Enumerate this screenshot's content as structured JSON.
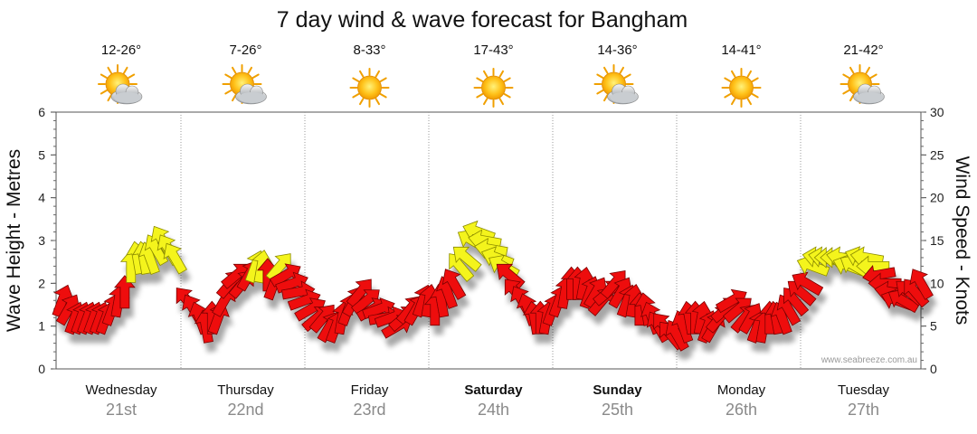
{
  "chart_data": {
    "type": "line",
    "title": "7 day wind & wave forecast for Bangham",
    "ylabel_left": "Wave Height - Metres",
    "ylabel_right": "Wind Speed - Knots",
    "ylim_left": [
      0,
      6
    ],
    "ylim_right": [
      0,
      30
    ],
    "yticks_left": [
      "0",
      "1",
      "2",
      "3",
      "4",
      "5",
      "6"
    ],
    "yticks_right": [
      "0",
      "5",
      "10",
      "15",
      "20",
      "25",
      "30"
    ],
    "watermark": "www.seabreeze.com.au",
    "grid": "dotted vertical at day boundaries",
    "days": [
      {
        "name": "Wednesday",
        "date": "21st",
        "temp": "12-26°",
        "icon": "partly-cloudy-icon",
        "bold": false
      },
      {
        "name": "Thursday",
        "date": "22nd",
        "temp": "7-26°",
        "icon": "partly-cloudy-icon",
        "bold": false
      },
      {
        "name": "Friday",
        "date": "23rd",
        "temp": "8-33°",
        "icon": "sunny-icon",
        "bold": false
      },
      {
        "name": "Saturday",
        "date": "24th",
        "temp": "17-43°",
        "icon": "sunny-icon",
        "bold": true
      },
      {
        "name": "Sunday",
        "date": "25th",
        "temp": "14-36°",
        "icon": "partly-cloudy-icon",
        "bold": true
      },
      {
        "name": "Monday",
        "date": "26th",
        "temp": "14-41°",
        "icon": "sunny-icon",
        "bold": false
      },
      {
        "name": "Tuesday",
        "date": "27th",
        "temp": "21-42°",
        "icon": "partly-cloudy-icon",
        "bold": false
      }
    ],
    "wind_series": {
      "name": "Wind Speed",
      "color_low": "#ee1111",
      "color_high": "#f4f41a",
      "x_day": [
        0.05,
        0.1,
        0.15,
        0.2,
        0.25,
        0.3,
        0.35,
        0.4,
        0.45,
        0.5,
        0.55,
        0.6,
        0.65,
        0.7,
        0.75,
        0.8,
        0.85,
        0.9,
        0.95,
        1.05,
        1.1,
        1.15,
        1.2,
        1.25,
        1.3,
        1.35,
        1.4,
        1.45,
        1.5,
        1.55,
        1.6,
        1.65,
        1.7,
        1.75,
        1.8,
        1.85,
        1.9,
        1.95,
        2.0,
        2.05,
        2.1,
        2.15,
        2.2,
        2.25,
        2.3,
        2.35,
        2.4,
        2.45,
        2.5,
        2.55,
        2.6,
        2.65,
        2.7,
        2.75,
        2.8,
        2.85,
        2.9,
        2.95,
        3.0,
        3.05,
        3.1,
        3.15,
        3.2,
        3.25,
        3.3,
        3.35,
        3.4,
        3.45,
        3.5,
        3.55,
        3.6,
        3.65,
        3.7,
        3.75,
        3.8,
        3.85,
        3.9,
        3.95,
        4.0,
        4.05,
        4.1,
        4.15,
        4.2,
        4.25,
        4.3,
        4.35,
        4.4,
        4.45,
        4.5,
        4.55,
        4.6,
        4.65,
        4.7,
        4.75,
        4.8,
        4.85,
        4.9,
        4.95,
        5.0,
        5.05,
        5.1,
        5.15,
        5.2,
        5.25,
        5.3,
        5.35,
        5.4,
        5.45,
        5.5,
        5.55,
        5.6,
        5.65,
        5.7,
        5.75,
        5.8,
        5.85,
        5.9,
        5.95,
        6.0,
        6.05,
        6.1,
        6.15,
        6.2,
        6.25,
        6.3,
        6.35,
        6.4,
        6.45,
        6.5,
        6.55,
        6.6,
        6.65,
        6.7,
        6.75,
        6.8,
        6.85,
        6.9,
        6.95,
        7.0,
        7.05
      ],
      "knots": [
        8,
        7,
        6,
        6,
        6,
        6,
        6,
        6,
        7,
        8,
        9,
        12,
        13,
        13,
        13,
        14,
        15,
        14,
        13,
        8,
        7,
        6,
        5,
        6,
        6,
        8,
        10,
        11,
        10,
        11,
        12,
        12,
        11,
        10,
        12,
        11,
        10,
        9,
        8,
        7,
        6,
        6,
        5,
        5,
        6,
        7,
        8,
        9,
        8,
        7,
        7,
        6,
        6,
        5,
        6,
        7,
        7,
        8,
        8,
        7,
        8,
        9,
        10,
        12,
        13,
        15,
        16,
        15,
        14,
        13,
        12,
        11,
        9,
        8,
        7,
        6,
        6,
        6,
        7,
        8,
        9,
        10,
        10,
        10,
        9,
        9,
        8,
        9,
        10,
        9,
        8,
        8,
        7,
        7,
        6,
        5,
        5,
        4,
        4,
        5,
        6,
        6,
        6,
        5,
        5,
        6,
        7,
        8,
        7,
        6,
        6,
        5,
        5,
        6,
        6,
        6,
        7,
        8,
        9,
        10,
        12,
        13,
        13,
        13,
        13,
        13,
        12,
        12,
        13,
        13,
        12,
        11,
        10,
        9,
        8,
        8,
        9,
        9,
        10,
        11
      ],
      "direction_deg": [
        200,
        210,
        200,
        200,
        200,
        200,
        200,
        200,
        200,
        190,
        180,
        180,
        170,
        170,
        160,
        150,
        150,
        150,
        150,
        140,
        150,
        160,
        170,
        180,
        200,
        210,
        220,
        230,
        220,
        210,
        200,
        190,
        180,
        200,
        220,
        240,
        250,
        260,
        250,
        240,
        230,
        220,
        210,
        200,
        190,
        200,
        210,
        220,
        230,
        240,
        250,
        260,
        250,
        240,
        230,
        220,
        210,
        200,
        190,
        180,
        170,
        160,
        150,
        140,
        130,
        120,
        110,
        100,
        100,
        110,
        120,
        130,
        140,
        150,
        160,
        170,
        180,
        190,
        200,
        200,
        190,
        180,
        180,
        190,
        200,
        210,
        220,
        230,
        220,
        210,
        200,
        190,
        180,
        170,
        160,
        150,
        140,
        140,
        150,
        160,
        170,
        180,
        190,
        200,
        210,
        220,
        230,
        240,
        230,
        220,
        210,
        200,
        190,
        180,
        170,
        160,
        150,
        140,
        130,
        120,
        110,
        100,
        100,
        90,
        90,
        100,
        110,
        120,
        110,
        100,
        90,
        80,
        90,
        100,
        110,
        120,
        130,
        140,
        150,
        160
      ]
    }
  }
}
